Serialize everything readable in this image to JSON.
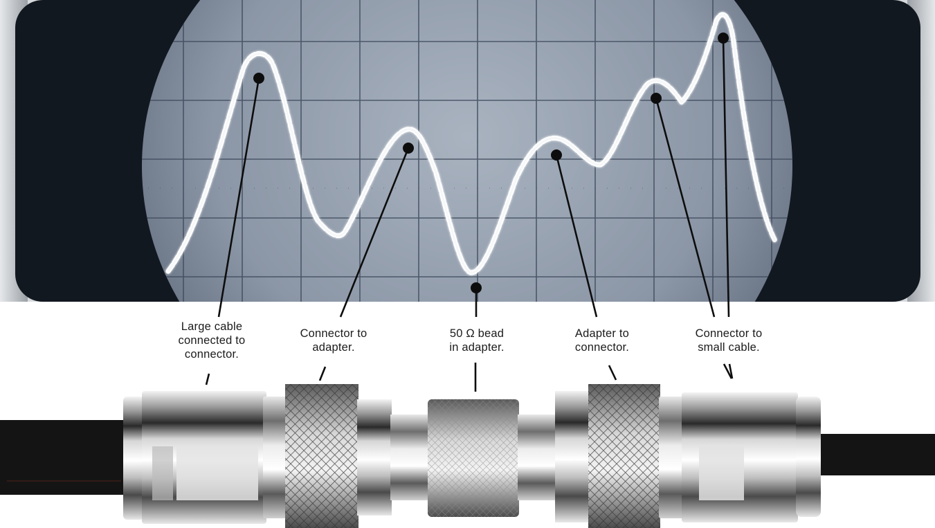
{
  "callouts": [
    {
      "id": "large-cable",
      "text": "Large cable\nconnected to\nconnector."
    },
    {
      "id": "connector-to-adapter",
      "text": "Connector to\nadapter."
    },
    {
      "id": "bead",
      "text": "50 Ω bead\nin adapter."
    },
    {
      "id": "adapter-to-connector",
      "text": "Adapter to\nconnector."
    },
    {
      "id": "connector-to-small-cable",
      "text": "Connector to\nsmall cable."
    }
  ]
}
